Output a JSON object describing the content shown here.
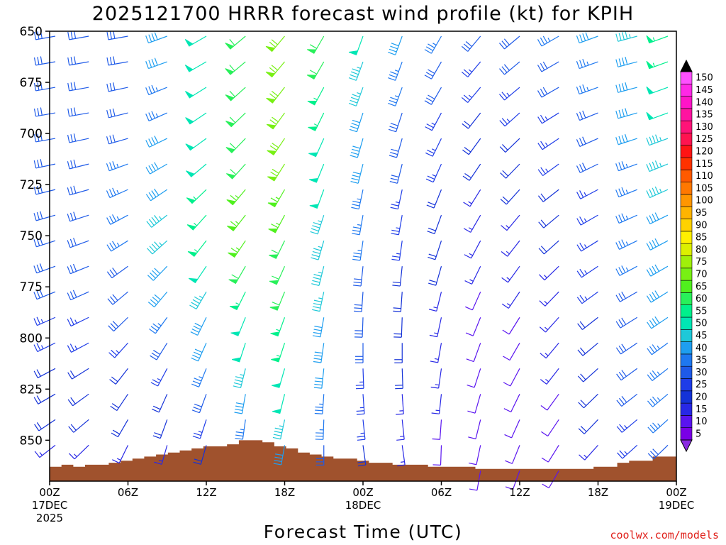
{
  "chart_data": {
    "type": "wind-barb-profile",
    "title": "2025121700 HRRR forecast wind profile (kt) for KPIH",
    "xlabel": "Forecast Time (UTC)",
    "ylabel": "",
    "credit": "coolwx.com/models",
    "x_hours_range": [
      0,
      48
    ],
    "p_range": [
      650,
      870
    ],
    "y_ticks": [
      650,
      675,
      700,
      725,
      750,
      775,
      800,
      825,
      850
    ],
    "x_ticks": [
      {
        "hour": 0,
        "lines": [
          "00Z",
          "17DEC",
          "2025"
        ]
      },
      {
        "hour": 6,
        "lines": [
          "06Z"
        ]
      },
      {
        "hour": 12,
        "lines": [
          "12Z"
        ]
      },
      {
        "hour": 18,
        "lines": [
          "18Z"
        ]
      },
      {
        "hour": 24,
        "lines": [
          "00Z",
          "18DEC"
        ]
      },
      {
        "hour": 30,
        "lines": [
          "06Z"
        ]
      },
      {
        "hour": 36,
        "lines": [
          "12Z"
        ]
      },
      {
        "hour": 42,
        "lines": [
          "18Z"
        ]
      },
      {
        "hour": 48,
        "lines": [
          "00Z",
          "19DEC"
        ]
      }
    ],
    "levels": [
      650,
      662.5,
      675,
      687.5,
      700,
      712.5,
      725,
      737.5,
      750,
      762.5,
      775,
      787.5,
      800,
      812.5,
      825,
      837.5,
      850,
      862.5
    ],
    "surface_pressure": [
      863,
      862,
      863,
      862,
      862,
      861,
      860,
      859,
      858,
      857,
      856,
      855,
      854,
      853,
      853,
      852,
      850,
      850,
      851,
      853,
      854,
      856,
      857,
      858,
      859,
      859,
      860,
      861,
      861,
      862,
      862,
      862,
      863,
      863,
      863,
      863,
      864,
      864,
      864,
      864,
      864,
      864,
      864,
      864,
      864,
      864,
      863,
      863,
      861,
      860,
      860,
      858,
      858
    ],
    "colorbar": {
      "values": [
        5,
        10,
        15,
        20,
        25,
        30,
        35,
        40,
        45,
        50,
        55,
        60,
        65,
        70,
        75,
        80,
        85,
        90,
        95,
        100,
        105,
        110,
        115,
        120,
        125,
        130,
        135,
        140,
        145,
        150
      ],
      "colors": [
        "#7a00e6",
        "#5a14f0",
        "#2828e6",
        "#1432d8",
        "#1e3ce8",
        "#1e5ae8",
        "#1e78f0",
        "#1e9ef0",
        "#1ec8d8",
        "#00e6b4",
        "#00f08c",
        "#28f05a",
        "#50f01e",
        "#78f014",
        "#a0f00a",
        "#dcf000",
        "#fff000",
        "#ffd200",
        "#ffb400",
        "#ff9600",
        "#ff7800",
        "#ff5a00",
        "#ff3200",
        "#ff1414",
        "#ff1450",
        "#ff1478",
        "#ff14a0",
        "#ff14c8",
        "#ff28e6",
        "#ff50ff"
      ]
    },
    "wind_barbs": {
      "hours": [
        0,
        3,
        6,
        9,
        12,
        15,
        18,
        21,
        24,
        27,
        30,
        33,
        36,
        39,
        42,
        45,
        48
      ],
      "speed_kt": [
        [
          30,
          30,
          30,
          40,
          50,
          60,
          70,
          60,
          48,
          38,
          33,
          28,
          30,
          33,
          38,
          43,
          55
        ],
        [
          30,
          30,
          30,
          38,
          50,
          60,
          70,
          58,
          46,
          36,
          31,
          26,
          28,
          31,
          36,
          42,
          53
        ],
        [
          30,
          30,
          30,
          37,
          50,
          60,
          70,
          56,
          44,
          34,
          29,
          24,
          26,
          29,
          34,
          40,
          51
        ],
        [
          30,
          30,
          30,
          37,
          50,
          60,
          70,
          54,
          42,
          32,
          27,
          22,
          24,
          27,
          32,
          39,
          49
        ],
        [
          30,
          30,
          32,
          38,
          50,
          60,
          70,
          52,
          40,
          30,
          25,
          20,
          22,
          25,
          30,
          38,
          47
        ],
        [
          30,
          30,
          33,
          40,
          52,
          62,
          68,
          50,
          38,
          28,
          23,
          18,
          20,
          23,
          28,
          37,
          45
        ],
        [
          30,
          30,
          35,
          42,
          54,
          64,
          66,
          48,
          36,
          26,
          22,
          17,
          18,
          21,
          27,
          36,
          43
        ],
        [
          30,
          30,
          35,
          44,
          56,
          66,
          64,
          46,
          34,
          24,
          20,
          15,
          16,
          19,
          26,
          35,
          42
        ],
        [
          30,
          30,
          34,
          44,
          55,
          64,
          62,
          45,
          33,
          23,
          19,
          14,
          15,
          18,
          25,
          34,
          41
        ],
        [
          30,
          30,
          32,
          42,
          52,
          60,
          60,
          44,
          32,
          22,
          18,
          13,
          14,
          17,
          24,
          33,
          40
        ],
        [
          28,
          28,
          30,
          38,
          47,
          56,
          58,
          43,
          31,
          21,
          17,
          12,
          13,
          16,
          23,
          32,
          39
        ],
        [
          26,
          26,
          28,
          34,
          42,
          52,
          56,
          42,
          30,
          20,
          16,
          11,
          12,
          15,
          22,
          31,
          38
        ],
        [
          24,
          24,
          25,
          30,
          38,
          48,
          54,
          40,
          28,
          19,
          15,
          10,
          11,
          14,
          21,
          30,
          37
        ],
        [
          22,
          22,
          22,
          26,
          33,
          44,
          52,
          38,
          27,
          18,
          14,
          10,
          10,
          13,
          20,
          29,
          36
        ],
        [
          20,
          20,
          20,
          22,
          28,
          40,
          50,
          36,
          25,
          17,
          13,
          10,
          10,
          12,
          19,
          28,
          35
        ],
        [
          18,
          18,
          18,
          19,
          23,
          35,
          46,
          34,
          24,
          16,
          12,
          10,
          10,
          11,
          18,
          27,
          34
        ],
        [
          16,
          16,
          16,
          17,
          19,
          30,
          42,
          32,
          22,
          15,
          11,
          10,
          10,
          10,
          17,
          25,
          32
        ],
        [
          14,
          14,
          14,
          15,
          16,
          25,
          38,
          30,
          20,
          14,
          10,
          9,
          9,
          9,
          15,
          23,
          30
        ]
      ],
      "direction_deg": [
        [
          260,
          260,
          260,
          250,
          240,
          230,
          220,
          210,
          200,
          200,
          210,
          220,
          230,
          240,
          250,
          255,
          250
        ],
        [
          260,
          260,
          260,
          250,
          240,
          230,
          220,
          210,
          200,
          200,
          210,
          220,
          230,
          240,
          250,
          255,
          250
        ],
        [
          260,
          260,
          258,
          248,
          238,
          228,
          218,
          208,
          200,
          200,
          210,
          220,
          230,
          240,
          250,
          255,
          250
        ],
        [
          260,
          260,
          256,
          246,
          236,
          226,
          216,
          206,
          198,
          198,
          208,
          218,
          228,
          238,
          248,
          254,
          250
        ],
        [
          260,
          258,
          254,
          244,
          234,
          224,
          214,
          204,
          196,
          196,
          206,
          216,
          226,
          236,
          246,
          252,
          250
        ],
        [
          258,
          256,
          250,
          240,
          230,
          222,
          212,
          202,
          194,
          194,
          204,
          214,
          224,
          234,
          244,
          250,
          248
        ],
        [
          256,
          254,
          246,
          236,
          226,
          220,
          210,
          200,
          192,
          192,
          202,
          212,
          222,
          232,
          242,
          248,
          246
        ],
        [
          254,
          252,
          242,
          232,
          222,
          218,
          208,
          198,
          190,
          190,
          200,
          210,
          220,
          230,
          240,
          246,
          244
        ],
        [
          252,
          250,
          238,
          228,
          218,
          214,
          206,
          196,
          188,
          188,
          198,
          208,
          218,
          228,
          238,
          244,
          242
        ],
        [
          250,
          248,
          234,
          224,
          214,
          210,
          204,
          194,
          186,
          186,
          196,
          206,
          216,
          226,
          236,
          242,
          240
        ],
        [
          248,
          246,
          230,
          220,
          210,
          206,
          202,
          192,
          184,
          184,
          194,
          204,
          214,
          224,
          234,
          240,
          238
        ],
        [
          246,
          244,
          226,
          216,
          206,
          202,
          200,
          190,
          182,
          182,
          192,
          202,
          212,
          222,
          232,
          238,
          236
        ],
        [
          244,
          242,
          222,
          212,
          204,
          198,
          198,
          188,
          180,
          180,
          190,
          200,
          210,
          220,
          230,
          236,
          234
        ],
        [
          242,
          238,
          218,
          208,
          202,
          194,
          196,
          186,
          178,
          178,
          188,
          198,
          208,
          218,
          228,
          234,
          232
        ],
        [
          240,
          234,
          214,
          204,
          200,
          190,
          194,
          184,
          176,
          176,
          186,
          196,
          206,
          216,
          226,
          232,
          230
        ],
        [
          236,
          230,
          210,
          200,
          198,
          188,
          192,
          182,
          174,
          174,
          184,
          194,
          204,
          214,
          224,
          230,
          228
        ],
        [
          232,
          226,
          206,
          196,
          196,
          186,
          190,
          180,
          172,
          172,
          182,
          192,
          202,
          212,
          222,
          228,
          226
        ],
        [
          228,
          222,
          202,
          192,
          194,
          184,
          188,
          178,
          170,
          170,
          180,
          190,
          200,
          210,
          220,
          226,
          224
        ]
      ]
    }
  }
}
